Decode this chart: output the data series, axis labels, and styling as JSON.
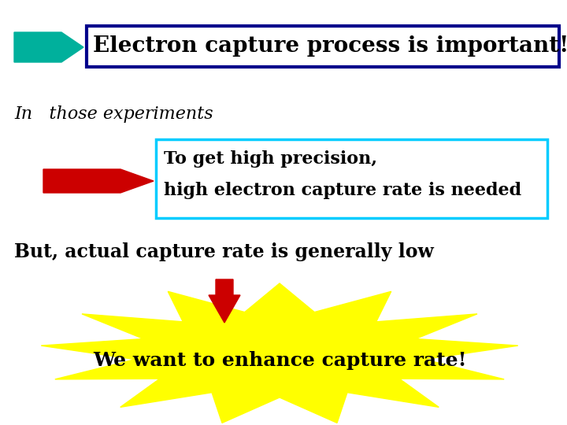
{
  "bg_color": "#ffffff",
  "title_box_text": "Electron capture process is important!",
  "title_box_border_color": "#00008B",
  "title_box_bg": "#ffffff",
  "title_arrow_color": "#00B09C",
  "subtitle_text": "In   those experiments",
  "inner_box_line1": "To get high precision,",
  "inner_box_line2": "high electron capture rate is needed",
  "inner_box_border_color": "#00CCFF",
  "inner_box_bg": "#ffffff",
  "inner_arrow_color": "#CC0000",
  "but_text": "But, actual capture rate is generally low",
  "bottom_arrow_color": "#CC0000",
  "starburst_color": "#FFFF00",
  "starburst_text": "We want to enhance capture rate!",
  "font_family": "DejaVu Serif",
  "title_fontsize": 20,
  "subtitle_fontsize": 16,
  "inner_fontsize": 16,
  "but_fontsize": 17,
  "star_fontsize": 18
}
